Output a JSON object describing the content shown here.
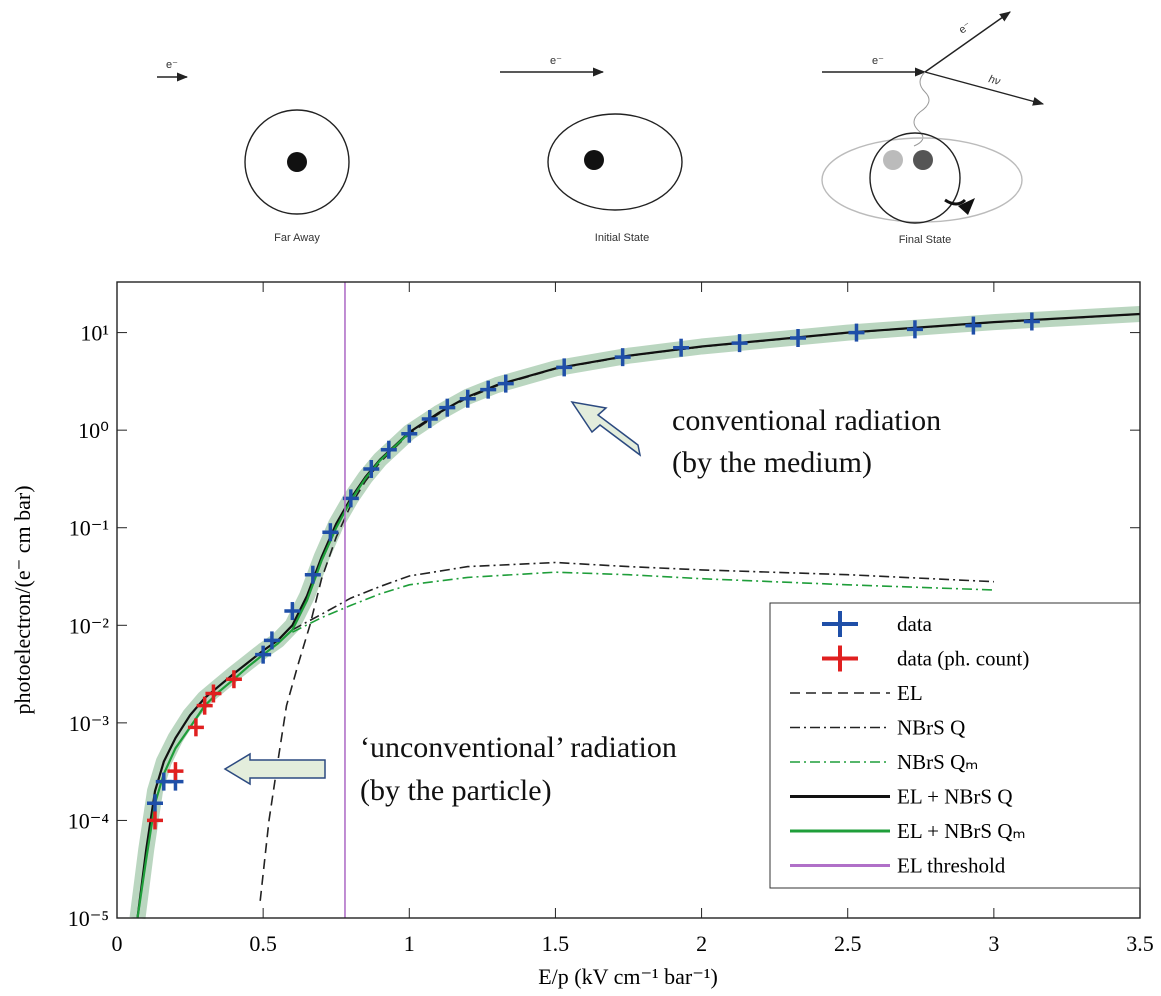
{
  "diagram": {
    "panels": [
      {
        "label": "Far Away",
        "electron": "e⁻"
      },
      {
        "label": "Initial State",
        "electron": "e⁻"
      },
      {
        "label": "Final State",
        "electron": "e⁻"
      }
    ],
    "scattered_electron": "e⁻",
    "photon": "hν"
  },
  "chart_data": {
    "type": "line",
    "yscale": "log",
    "xlabel": "E/p (kV cm⁻¹ bar⁻¹)",
    "ylabel": "photoelectron/(e⁻ cm bar)",
    "xlim": [
      0,
      3.5
    ],
    "xticks": [
      0,
      0.5,
      1,
      1.5,
      2,
      2.5,
      3,
      3.5
    ],
    "ylim": [
      1e-05,
      33
    ],
    "yticks": [
      {
        "value": 1e-05,
        "label": "10⁻⁵"
      },
      {
        "value": 0.0001,
        "label": "10⁻⁴"
      },
      {
        "value": 0.001,
        "label": "10⁻³"
      },
      {
        "value": 0.01,
        "label": "10⁻²"
      },
      {
        "value": 0.1,
        "label": "10⁻¹"
      },
      {
        "value": 1,
        "label": "10⁰"
      },
      {
        "value": 10,
        "label": "10¹"
      }
    ],
    "series": [
      {
        "name": "data",
        "color": "#1f4fa8",
        "style": "markers",
        "x": [
          0.13,
          0.16,
          0.2,
          0.5,
          0.53,
          0.6,
          0.67,
          0.73,
          0.8,
          0.87,
          0.93,
          1.0,
          1.07,
          1.13,
          1.2,
          1.27,
          1.33,
          1.53,
          1.73,
          1.93,
          2.13,
          2.33,
          2.53,
          2.73,
          2.93,
          3.13
        ],
        "values": [
          0.00015,
          0.00025,
          0.00025,
          0.005,
          0.007,
          0.014,
          0.033,
          0.09,
          0.2,
          0.4,
          0.63,
          0.92,
          1.3,
          1.7,
          2.1,
          2.6,
          3.0,
          4.4,
          5.6,
          7.0,
          7.8,
          8.8,
          10,
          10.8,
          11.8,
          13
        ]
      },
      {
        "name": "data (ph. count)",
        "color": "#e02020",
        "style": "markers",
        "x": [
          0.13,
          0.2,
          0.27,
          0.3,
          0.33,
          0.4
        ],
        "values": [
          0.0001,
          0.00032,
          0.0009,
          0.0015,
          0.002,
          0.0028
        ]
      },
      {
        "name": "EL",
        "color": "#222222",
        "style": "dashed",
        "x": [
          0.49,
          0.52,
          0.55,
          0.58,
          0.62,
          0.66,
          0.7,
          0.75,
          0.8,
          0.85,
          0.9,
          1.0,
          1.1,
          1.2,
          1.3,
          1.5,
          1.75,
          2.0,
          2.5,
          3.0,
          3.5
        ],
        "values": [
          1.5e-05,
          0.0001,
          0.0004,
          0.0015,
          0.004,
          0.01,
          0.03,
          0.08,
          0.17,
          0.3,
          0.47,
          0.92,
          1.46,
          2.15,
          2.85,
          4.25,
          5.75,
          7.15,
          9.95,
          12.75,
          15.45
        ]
      },
      {
        "name": "NBrS Q",
        "color": "#222222",
        "style": "dashdot",
        "x": [
          0.6,
          0.7,
          0.8,
          0.9,
          1.0,
          1.2,
          1.5,
          1.75,
          2.0,
          2.5,
          3.0
        ],
        "values": [
          0.009,
          0.013,
          0.019,
          0.025,
          0.032,
          0.04,
          0.044,
          0.04,
          0.037,
          0.033,
          0.028
        ]
      },
      {
        "name": "NBrS Qₘ",
        "color": "#1f9e3a",
        "style": "dashdot",
        "x": [
          0.6,
          0.7,
          0.8,
          0.9,
          1.0,
          1.2,
          1.5,
          1.75,
          2.0,
          2.5,
          3.0
        ],
        "values": [
          0.0085,
          0.012,
          0.016,
          0.021,
          0.026,
          0.031,
          0.035,
          0.033,
          0.03,
          0.026,
          0.023
        ]
      },
      {
        "name": "EL + NBrS Q",
        "color": "#111111",
        "style": "solid",
        "x": [
          0.07,
          0.1,
          0.13,
          0.16,
          0.2,
          0.25,
          0.3,
          0.35,
          0.4,
          0.45,
          0.5,
          0.55,
          0.6,
          0.65,
          0.7,
          0.75,
          0.8,
          0.85,
          0.9,
          1.0,
          1.1,
          1.2,
          1.3,
          1.5,
          1.75,
          2.0,
          2.5,
          3.0,
          3.5
        ],
        "values": [
          1e-05,
          5e-05,
          0.0002,
          0.0004,
          0.0007,
          0.0012,
          0.0018,
          0.0024,
          0.0032,
          0.0042,
          0.0055,
          0.007,
          0.01,
          0.02,
          0.05,
          0.11,
          0.2,
          0.33,
          0.5,
          0.95,
          1.5,
          2.2,
          2.9,
          4.3,
          5.8,
          7.2,
          10,
          12.8,
          15.5
        ]
      },
      {
        "name": "EL + NBrS Qₘ",
        "color": "#1f9e3a",
        "style": "solid",
        "x": [
          0.07,
          0.1,
          0.13,
          0.16,
          0.2,
          0.25,
          0.3,
          0.35,
          0.4,
          0.45,
          0.5,
          0.55,
          0.6,
          0.65,
          0.7,
          0.75,
          0.8,
          0.85,
          0.9,
          1.0
        ],
        "values": [
          1e-05,
          4e-05,
          0.00015,
          0.0003,
          0.00055,
          0.0009,
          0.0015,
          0.0021,
          0.0028,
          0.0038,
          0.005,
          0.0065,
          0.009,
          0.018,
          0.046,
          0.1,
          0.19,
          0.32,
          0.49,
          0.94
        ]
      }
    ],
    "threshold": {
      "name": "EL threshold",
      "x": 0.78,
      "color": "#b070c8"
    },
    "annotations": [
      "conventional radiation",
      "(by the medium)",
      "‘unconventional’ radiation",
      "(by the particle)"
    ]
  }
}
